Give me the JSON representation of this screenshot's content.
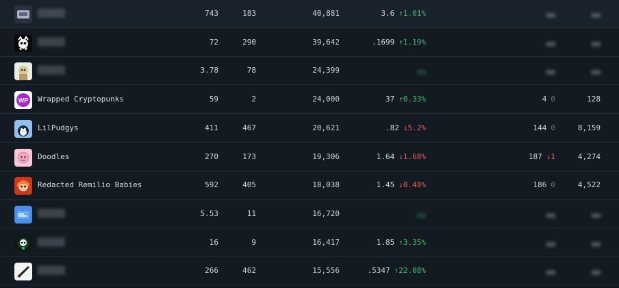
{
  "rows": [
    {
      "name": "",
      "floor": "743",
      "owners": "183",
      "supply": "40,881",
      "volume": "3.6",
      "vol_change": "1.01%",
      "vol_dir": "up",
      "sales": "",
      "sales_change": "",
      "sales_dir": "",
      "holders": "",
      "thumb": "thumb-1"
    },
    {
      "name": "",
      "floor": "72",
      "owners": "290",
      "supply": "39,642",
      "volume": ".1699",
      "vol_change": "1.19%",
      "vol_dir": "up",
      "sales": "",
      "sales_change": "",
      "sales_dir": "",
      "holders": "",
      "thumb": "thumb-2"
    },
    {
      "name": "",
      "floor": "3.78",
      "owners": "78",
      "supply": "24,399",
      "volume": "",
      "vol_change": "",
      "vol_dir": "",
      "sales": "",
      "sales_change": "",
      "sales_dir": "",
      "holders": "",
      "thumb": "thumb-3"
    },
    {
      "name": "Wrapped Cryptopunks",
      "floor": "59",
      "owners": "2",
      "supply": "24,000",
      "volume": "37",
      "vol_change": "0.33%",
      "vol_dir": "up",
      "sales": "4",
      "sales_change": "0",
      "sales_dir": "zero",
      "holders": "128",
      "thumb": "thumb-4"
    },
    {
      "name": "LilPudgys",
      "floor": "411",
      "owners": "467",
      "supply": "20,621",
      "volume": ".82",
      "vol_change": "5.2%",
      "vol_dir": "down",
      "sales": "144",
      "sales_change": "0",
      "sales_dir": "zero",
      "holders": "8,159",
      "thumb": "thumb-5"
    },
    {
      "name": "Doodles",
      "floor": "270",
      "owners": "173",
      "supply": "19,306",
      "volume": "1.64",
      "vol_change": "1.68%",
      "vol_dir": "down",
      "sales": "187",
      "sales_change": "1",
      "sales_dir": "down",
      "holders": "4,274",
      "thumb": "thumb-6"
    },
    {
      "name": "Redacted Remilio Babies",
      "floor": "592",
      "owners": "405",
      "supply": "18,038",
      "volume": "1.45",
      "vol_change": "0.48%",
      "vol_dir": "down",
      "sales": "186",
      "sales_change": "0",
      "sales_dir": "zero",
      "holders": "4,522",
      "thumb": "thumb-7"
    },
    {
      "name": "",
      "floor": "5.53",
      "owners": "11",
      "supply": "16,720",
      "volume": "",
      "vol_change": "",
      "vol_dir": "",
      "sales": "",
      "sales_change": "",
      "sales_dir": "",
      "holders": "",
      "thumb": "thumb-8"
    },
    {
      "name": "",
      "floor": "16",
      "owners": "9",
      "supply": "16,417",
      "volume": "1.85",
      "vol_change": "3.35%",
      "vol_dir": "up",
      "sales": "",
      "sales_change": "",
      "sales_dir": "",
      "holders": "",
      "thumb": "thumb-9"
    },
    {
      "name": "",
      "floor": "266",
      "owners": "462",
      "supply": "15,556",
      "volume": ".5347",
      "vol_change": "22.08%",
      "vol_dir": "up",
      "sales": "",
      "sales_change": "",
      "sales_dir": "",
      "holders": "",
      "thumb": "thumb-10"
    }
  ],
  "arrows": {
    "up": "↑",
    "down": "↓"
  },
  "colors": {
    "background": "#141a22",
    "up": "#3fbf6f",
    "down": "#e0615a",
    "divider": "#232b36"
  }
}
